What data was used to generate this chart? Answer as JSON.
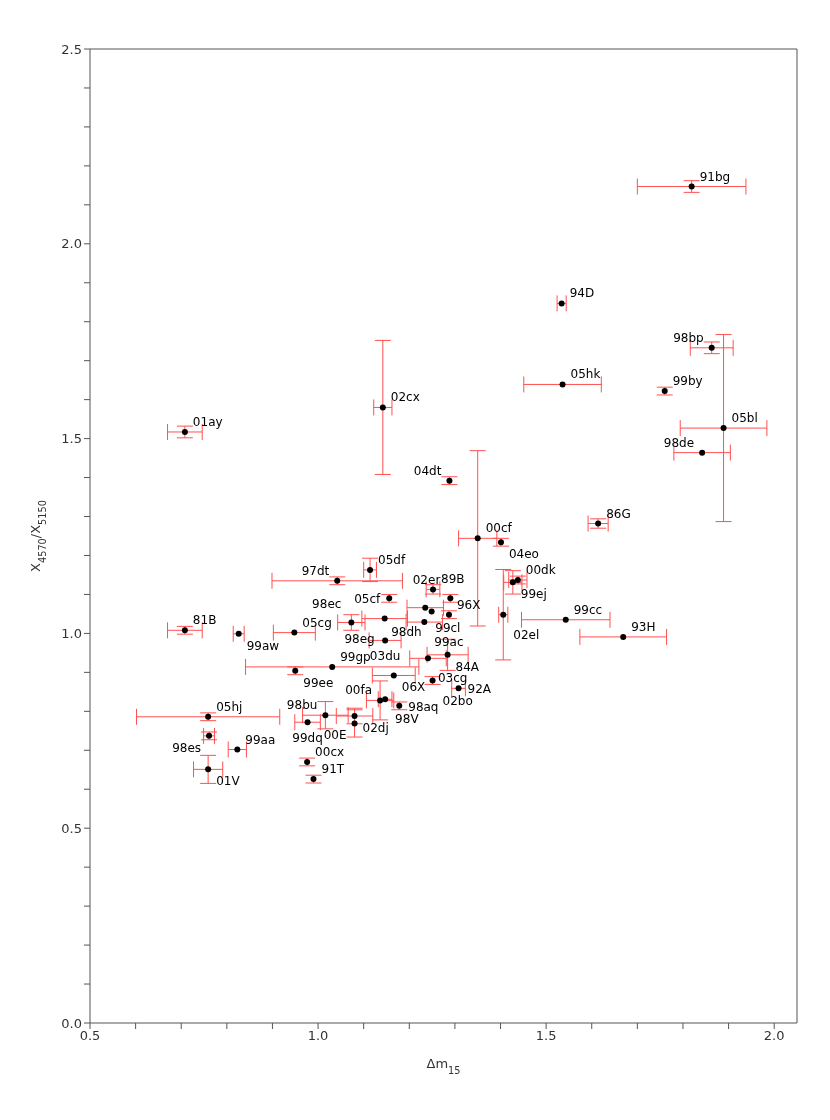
{
  "chart_data": {
    "type": "scatter",
    "xlabel": "Δm$_{15}$",
    "ylabel": "X$_{4570}$/X$_{5150}$",
    "xlim": [
      0.5,
      2.05
    ],
    "ylim": [
      0,
      2.5
    ],
    "xticks": [
      {
        "value": 0.5,
        "label": "0.5"
      },
      {
        "value": 0.6,
        "label": null
      },
      {
        "value": 0.7,
        "label": null
      },
      {
        "value": 0.8,
        "label": null
      },
      {
        "value": 0.9,
        "label": null
      },
      {
        "value": 1.0,
        "label": "1.0"
      },
      {
        "value": 1.1,
        "label": null
      },
      {
        "value": 1.2,
        "label": null
      },
      {
        "value": 1.3,
        "label": null
      },
      {
        "value": 1.4,
        "label": null
      },
      {
        "value": 1.5,
        "label": "1.5"
      },
      {
        "value": 1.6,
        "label": null
      },
      {
        "value": 1.7,
        "label": null
      },
      {
        "value": 1.8,
        "label": null
      },
      {
        "value": 1.9,
        "label": null
      },
      {
        "value": 2.0,
        "label": "2.0"
      }
    ],
    "yticks": [
      {
        "value": 0,
        "label": "0.0"
      },
      {
        "value": 0.1,
        "label": null
      },
      {
        "value": 0.2,
        "label": null
      },
      {
        "value": 0.3,
        "label": null
      },
      {
        "value": 0.4,
        "label": null
      },
      {
        "value": 0.5,
        "label": "0.5"
      },
      {
        "value": 0.6,
        "label": null
      },
      {
        "value": 0.7,
        "label": null
      },
      {
        "value": 0.8,
        "label": null
      },
      {
        "value": 0.9,
        "label": null
      },
      {
        "value": 1.0,
        "label": "1.0"
      },
      {
        "value": 1.1,
        "label": null
      },
      {
        "value": 1.2,
        "label": null
      },
      {
        "value": 1.3,
        "label": null
      },
      {
        "value": 1.4,
        "label": null
      },
      {
        "value": 1.5,
        "label": "1.5"
      },
      {
        "value": 1.6,
        "label": null
      },
      {
        "value": 1.7,
        "label": null
      },
      {
        "value": 1.8,
        "label": null
      },
      {
        "value": 1.9,
        "label": null
      },
      {
        "value": 2.0,
        "label": "2.0"
      },
      {
        "value": 2.1,
        "label": null
      },
      {
        "value": 2.2,
        "label": null
      },
      {
        "value": 2.3,
        "label": null
      },
      {
        "value": 2.4,
        "label": null
      },
      {
        "value": 2.5,
        "label": "2.5"
      }
    ],
    "marker": "circle",
    "grid": false,
    "legend": false,
    "series": [
      {
        "color": "#000000",
        "x": [
          0.708,
          0.708,
          0.826,
          0.948,
          0.95,
          1.031,
          0.759,
          0.761,
          0.823,
          0.759,
          0.977,
          1.016,
          0.976,
          0.99,
          1.042,
          1.114,
          1.156,
          1.252,
          1.29,
          1.235,
          1.249,
          1.287,
          1.233,
          1.146,
          1.073,
          1.147,
          1.241,
          1.284,
          1.166,
          1.251,
          1.308,
          1.136,
          1.147,
          1.178,
          1.08,
          1.08,
          1.438,
          1.427,
          1.406,
          1.543,
          1.669,
          1.35,
          1.401,
          1.288,
          1.142,
          1.819,
          1.534,
          1.863,
          1.536,
          1.76,
          1.889,
          1.842,
          1.614
        ],
        "values": [
          1.517,
          1.008,
          0.999,
          1.002,
          0.904,
          0.914,
          0.786,
          0.737,
          0.702,
          0.651,
          0.772,
          0.79,
          0.67,
          0.626,
          1.135,
          1.163,
          1.09,
          1.113,
          1.09,
          1.066,
          1.056,
          1.048,
          1.029,
          1.038,
          1.028,
          0.982,
          0.936,
          0.945,
          0.892,
          0.879,
          0.859,
          0.828,
          0.831,
          0.814,
          0.788,
          0.769,
          1.137,
          1.131,
          1.048,
          1.035,
          0.991,
          1.244,
          1.234,
          1.392,
          1.58,
          2.147,
          1.847,
          1.733,
          1.639,
          1.622,
          1.527,
          1.464,
          1.282
        ],
        "xerrors": [
          0.038,
          0.038,
          0.012,
          0.046,
          null,
          0.19,
          0.157,
          0.012,
          0.02,
          0.032,
          0.028,
          0.05,
          null,
          null,
          0.143,
          0.014,
          null,
          0.015,
          null,
          0.04,
          null,
          null,
          0.04,
          0.05,
          0.03,
          0.035,
          0.04,
          0.045,
          0.047,
          null,
          0.015,
          0.03,
          0.015,
          null,
          0.04,
          null,
          0.02,
          0.02,
          0.01,
          0.097,
          0.095,
          0.042,
          null,
          null,
          0.02,
          0.119,
          0.01,
          0.047,
          0.085,
          null,
          0.095,
          0.062,
          0.022
        ],
        "errors": [
          0.015,
          0.01,
          null,
          null,
          0.01,
          null,
          0.01,
          0.01,
          null,
          0.036,
          null,
          0.035,
          0.01,
          0.01,
          0.01,
          0.03,
          0.01,
          0.012,
          0.01,
          null,
          null,
          0.01,
          null,
          null,
          0.02,
          null,
          null,
          0.04,
          null,
          0.01,
          null,
          0.05,
          null,
          0.01,
          0.02,
          0.035,
          0.01,
          0.03,
          0.116,
          null,
          null,
          0.225,
          0.01,
          0.01,
          0.172,
          0.015,
          null,
          0.015,
          null,
          0.01,
          0.24,
          null,
          0.012
        ]
      }
    ],
    "annotations": [
      {
        "text": "01ay",
        "x": 0.708,
        "y": 1.517
      },
      {
        "text": "81B",
        "x": 0.708,
        "y": 1.008
      },
      {
        "text": "99aw",
        "x": 0.826,
        "y": 0.999
      },
      {
        "text": "05cg",
        "x": 0.948,
        "y": 1.002
      },
      {
        "text": "99ee",
        "x": 0.95,
        "y": 0.904
      },
      {
        "text": "99gp",
        "x": 1.031,
        "y": 0.914
      },
      {
        "text": "05hj",
        "x": 0.759,
        "y": 0.786
      },
      {
        "text": "98es",
        "x": 0.761,
        "y": 0.737
      },
      {
        "text": "99aa",
        "x": 0.823,
        "y": 0.702
      },
      {
        "text": "01V",
        "x": 0.759,
        "y": 0.651
      },
      {
        "text": "99dq",
        "x": 0.977,
        "y": 0.772
      },
      {
        "text": "98bu",
        "x": 1.016,
        "y": 0.79
      },
      {
        "text": "00cx",
        "x": 0.976,
        "y": 0.67
      },
      {
        "text": "91T",
        "x": 0.99,
        "y": 0.626
      },
      {
        "text": "97dt",
        "x": 1.042,
        "y": 1.135
      },
      {
        "text": "05df",
        "x": 1.114,
        "y": 1.163
      },
      {
        "text": "05cf",
        "x": 1.156,
        "y": 1.09
      },
      {
        "text": "89B",
        "x": 1.252,
        "y": 1.113
      },
      {
        "text": "02er",
        "x": 1.29,
        "y": 1.09
      },
      {
        "text": "99cl",
        "x": 1.235,
        "y": 1.066
      },
      {
        "text": "98dh",
        "x": 1.249,
        "y": 1.056
      },
      {
        "text": "96X",
        "x": 1.287,
        "y": 1.048
      },
      {
        "text": "99ac",
        "x": 1.233,
        "y": 1.029
      },
      {
        "text": "98eg",
        "x": 1.146,
        "y": 1.038
      },
      {
        "text": "98ec",
        "x": 1.073,
        "y": 1.028
      },
      {
        "text": "03du",
        "x": 1.147,
        "y": 0.982
      },
      {
        "text": "03cg",
        "x": 1.241,
        "y": 0.936
      },
      {
        "text": "84A",
        "x": 1.284,
        "y": 0.945
      },
      {
        "text": "06X",
        "x": 1.166,
        "y": 0.892
      },
      {
        "text": "02bo",
        "x": 1.251,
        "y": 0.879
      },
      {
        "text": "92A",
        "x": 1.308,
        "y": 0.859
      },
      {
        "text": "00fa",
        "x": 1.136,
        "y": 0.828
      },
      {
        "text": "98V",
        "x": 1.147,
        "y": 0.831
      },
      {
        "text": "98aq",
        "x": 1.178,
        "y": 0.814
      },
      {
        "text": "02dj",
        "x": 1.08,
        "y": 0.788
      },
      {
        "text": "00E",
        "x": 1.08,
        "y": 0.769
      },
      {
        "text": "00dk",
        "x": 1.438,
        "y": 1.137
      },
      {
        "text": "99ej",
        "x": 1.427,
        "y": 1.131
      },
      {
        "text": "02el",
        "x": 1.406,
        "y": 1.048
      },
      {
        "text": "99cc",
        "x": 1.543,
        "y": 1.035
      },
      {
        "text": "93H",
        "x": 1.669,
        "y": 0.991
      },
      {
        "text": "00cf",
        "x": 1.35,
        "y": 1.244
      },
      {
        "text": "04eo",
        "x": 1.401,
        "y": 1.234
      },
      {
        "text": "04dt",
        "x": 1.288,
        "y": 1.392
      },
      {
        "text": "02cx",
        "x": 1.142,
        "y": 1.58
      },
      {
        "text": "91bg",
        "x": 1.819,
        "y": 2.147
      },
      {
        "text": "94D",
        "x": 1.534,
        "y": 1.847
      },
      {
        "text": "98bp",
        "x": 1.863,
        "y": 1.733
      },
      {
        "text": "05hk",
        "x": 1.536,
        "y": 1.639
      },
      {
        "text": "99by",
        "x": 1.76,
        "y": 1.622
      },
      {
        "text": "05bl",
        "x": 1.889,
        "y": 1.527
      },
      {
        "text": "98de",
        "x": 1.842,
        "y": 1.464
      },
      {
        "text": "86G",
        "x": 1.614,
        "y": 1.282
      }
    ]
  }
}
